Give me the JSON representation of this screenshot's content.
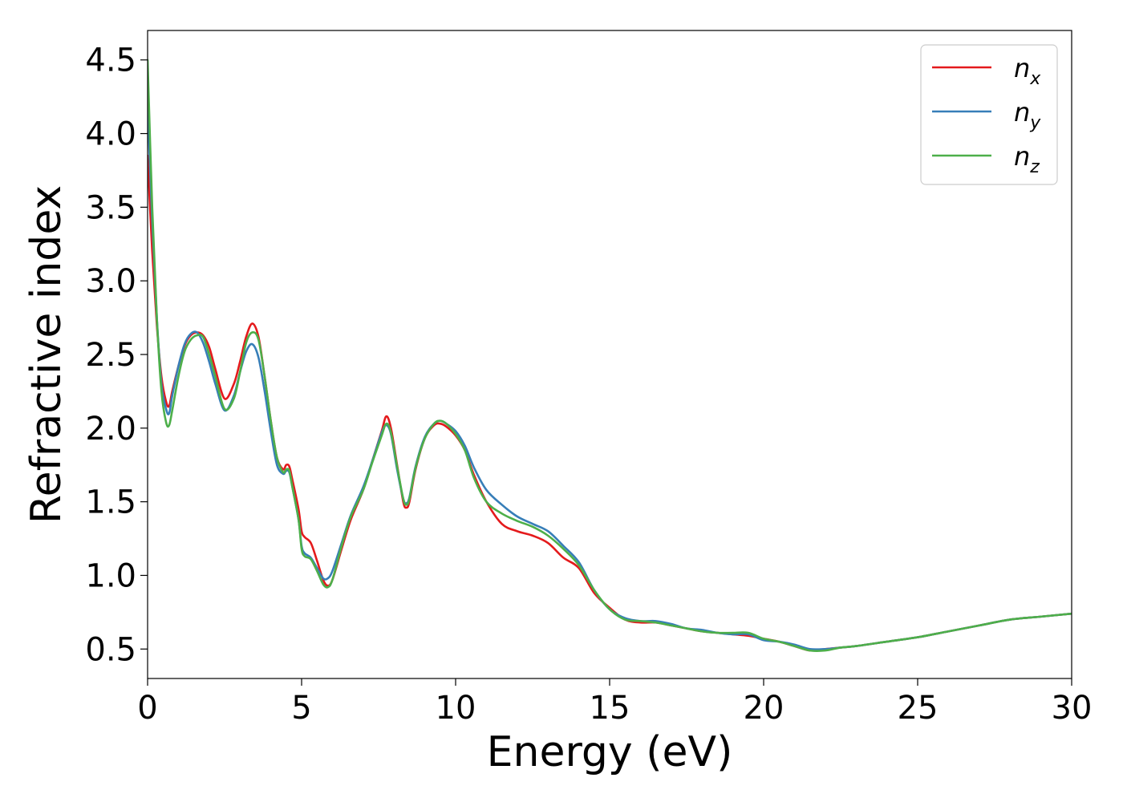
{
  "chart_data": {
    "type": "line",
    "title": "",
    "xlabel": "Energy (eV)",
    "ylabel": "Refractive index",
    "xlim": [
      0,
      30
    ],
    "ylim": [
      0.3,
      4.7
    ],
    "xticks": [
      0,
      5,
      10,
      15,
      20,
      25,
      30
    ],
    "xtick_labels": [
      "0",
      "5",
      "10",
      "15",
      "20",
      "25",
      "30"
    ],
    "yticks": [
      0.5,
      1.0,
      1.5,
      2.0,
      2.5,
      3.0,
      3.5,
      4.0,
      4.5
    ],
    "ytick_labels": [
      "0.5",
      "1.0",
      "1.5",
      "2.0",
      "2.5",
      "3.0",
      "3.5",
      "4.0",
      "4.5"
    ],
    "grid": false,
    "legend_position": "top-right",
    "series": [
      {
        "name": "n_x",
        "label_main": "n",
        "label_sub": "x",
        "color": "#e41a1c",
        "x": [
          0,
          0.15,
          0.3,
          0.45,
          0.6,
          0.7,
          0.8,
          1.0,
          1.2,
          1.4,
          1.6,
          1.8,
          2.0,
          2.2,
          2.5,
          2.8,
          3.0,
          3.2,
          3.4,
          3.6,
          3.8,
          4.0,
          4.2,
          4.4,
          4.5,
          4.6,
          4.7,
          4.9,
          5.0,
          5.1,
          5.3,
          5.5,
          5.7,
          5.85,
          6.0,
          6.3,
          6.6,
          7.0,
          7.3,
          7.6,
          7.75,
          7.9,
          8.1,
          8.3,
          8.4,
          8.5,
          8.7,
          9.0,
          9.3,
          9.5,
          9.7,
          10.0,
          10.3,
          10.6,
          11.0,
          11.5,
          12.0,
          12.5,
          13.0,
          13.5,
          14.0,
          14.5,
          15.0,
          15.5,
          16.0,
          16.5,
          17.0,
          17.5,
          18.0,
          18.5,
          19.0,
          19.5,
          20.0,
          20.5,
          21.0,
          21.5,
          22.0,
          22.5,
          23.0,
          24.0,
          25.0,
          26.0,
          27.0,
          28.0,
          29.0,
          30.0
        ],
        "y": [
          3.85,
          3.2,
          2.7,
          2.35,
          2.18,
          2.15,
          2.25,
          2.42,
          2.56,
          2.63,
          2.65,
          2.63,
          2.55,
          2.4,
          2.2,
          2.3,
          2.45,
          2.62,
          2.71,
          2.62,
          2.35,
          2.05,
          1.8,
          1.72,
          1.75,
          1.74,
          1.65,
          1.45,
          1.3,
          1.26,
          1.22,
          1.1,
          0.97,
          0.93,
          0.97,
          1.18,
          1.38,
          1.58,
          1.78,
          1.98,
          2.08,
          2.0,
          1.75,
          1.5,
          1.46,
          1.5,
          1.72,
          1.93,
          2.02,
          2.03,
          2.01,
          1.95,
          1.85,
          1.68,
          1.5,
          1.35,
          1.3,
          1.27,
          1.22,
          1.12,
          1.05,
          0.88,
          0.78,
          0.7,
          0.68,
          0.68,
          0.66,
          0.64,
          0.62,
          0.61,
          0.6,
          0.59,
          0.57,
          0.55,
          0.52,
          0.49,
          0.5,
          0.51,
          0.52,
          0.55,
          0.58,
          0.62,
          0.66,
          0.7,
          0.72,
          0.74
        ]
      },
      {
        "name": "n_y",
        "label_main": "n",
        "label_sub": "y",
        "color": "#377eb8",
        "x": [
          0,
          0.15,
          0.3,
          0.45,
          0.6,
          0.7,
          0.8,
          1.0,
          1.2,
          1.4,
          1.6,
          1.8,
          2.0,
          2.2,
          2.5,
          2.8,
          3.0,
          3.2,
          3.4,
          3.6,
          3.8,
          4.0,
          4.2,
          4.4,
          4.5,
          4.6,
          4.7,
          4.9,
          5.0,
          5.1,
          5.3,
          5.5,
          5.7,
          5.85,
          6.0,
          6.3,
          6.6,
          7.0,
          7.3,
          7.6,
          7.75,
          7.9,
          8.1,
          8.3,
          8.4,
          8.5,
          8.7,
          9.0,
          9.3,
          9.5,
          9.7,
          10.0,
          10.3,
          10.6,
          11.0,
          11.5,
          12.0,
          12.5,
          13.0,
          13.5,
          14.0,
          14.5,
          15.0,
          15.5,
          16.0,
          16.5,
          17.0,
          17.5,
          18.0,
          18.5,
          19.0,
          19.5,
          20.0,
          20.5,
          21.0,
          21.5,
          22.0,
          22.5,
          23.0,
          24.0,
          25.0,
          26.0,
          27.0,
          28.0,
          29.0,
          30.0
        ],
        "y": [
          4.2,
          3.4,
          2.75,
          2.3,
          2.13,
          2.1,
          2.22,
          2.42,
          2.57,
          2.64,
          2.65,
          2.58,
          2.45,
          2.3,
          2.12,
          2.22,
          2.38,
          2.52,
          2.57,
          2.48,
          2.25,
          1.98,
          1.75,
          1.69,
          1.71,
          1.7,
          1.6,
          1.38,
          1.2,
          1.15,
          1.12,
          1.05,
          0.98,
          0.98,
          1.03,
          1.22,
          1.41,
          1.6,
          1.78,
          1.97,
          2.02,
          1.96,
          1.72,
          1.52,
          1.49,
          1.53,
          1.74,
          1.94,
          2.03,
          2.05,
          2.03,
          1.98,
          1.88,
          1.73,
          1.58,
          1.48,
          1.4,
          1.35,
          1.3,
          1.2,
          1.09,
          0.9,
          0.77,
          0.71,
          0.69,
          0.69,
          0.67,
          0.64,
          0.63,
          0.61,
          0.6,
          0.6,
          0.56,
          0.55,
          0.53,
          0.5,
          0.5,
          0.51,
          0.52,
          0.55,
          0.58,
          0.62,
          0.66,
          0.7,
          0.72,
          0.74
        ]
      },
      {
        "name": "n_z",
        "label_main": "n",
        "label_sub": "z",
        "color": "#4daf4a",
        "x": [
          0,
          0.15,
          0.3,
          0.45,
          0.6,
          0.7,
          0.8,
          1.0,
          1.2,
          1.4,
          1.6,
          1.8,
          2.0,
          2.2,
          2.5,
          2.8,
          3.0,
          3.2,
          3.4,
          3.6,
          3.8,
          4.0,
          4.2,
          4.4,
          4.5,
          4.6,
          4.7,
          4.9,
          5.0,
          5.1,
          5.3,
          5.5,
          5.7,
          5.85,
          6.0,
          6.3,
          6.6,
          7.0,
          7.3,
          7.6,
          7.75,
          7.9,
          8.1,
          8.3,
          8.4,
          8.5,
          8.7,
          9.0,
          9.3,
          9.5,
          9.7,
          10.0,
          10.3,
          10.6,
          11.0,
          11.5,
          12.0,
          12.5,
          13.0,
          13.5,
          14.0,
          14.5,
          15.0,
          15.5,
          16.0,
          16.5,
          17.0,
          17.5,
          18.0,
          18.5,
          19.0,
          19.5,
          20.0,
          20.5,
          21.0,
          21.5,
          22.0,
          22.5,
          23.0,
          24.0,
          25.0,
          26.0,
          27.0,
          28.0,
          29.0,
          30.0
        ],
        "y": [
          4.5,
          3.5,
          2.75,
          2.25,
          2.04,
          2.02,
          2.12,
          2.35,
          2.52,
          2.6,
          2.63,
          2.62,
          2.5,
          2.35,
          2.13,
          2.2,
          2.38,
          2.58,
          2.65,
          2.6,
          2.35,
          2.05,
          1.8,
          1.7,
          1.72,
          1.71,
          1.6,
          1.38,
          1.18,
          1.13,
          1.11,
          1.03,
          0.94,
          0.92,
          0.97,
          1.2,
          1.4,
          1.58,
          1.77,
          1.95,
          2.03,
          1.97,
          1.74,
          1.52,
          1.48,
          1.52,
          1.73,
          1.93,
          2.03,
          2.05,
          2.03,
          1.96,
          1.85,
          1.66,
          1.5,
          1.42,
          1.37,
          1.33,
          1.27,
          1.18,
          1.07,
          0.9,
          0.77,
          0.7,
          0.69,
          0.68,
          0.66,
          0.64,
          0.62,
          0.61,
          0.61,
          0.61,
          0.57,
          0.55,
          0.52,
          0.49,
          0.49,
          0.51,
          0.52,
          0.55,
          0.58,
          0.62,
          0.66,
          0.7,
          0.72,
          0.74
        ]
      }
    ]
  }
}
